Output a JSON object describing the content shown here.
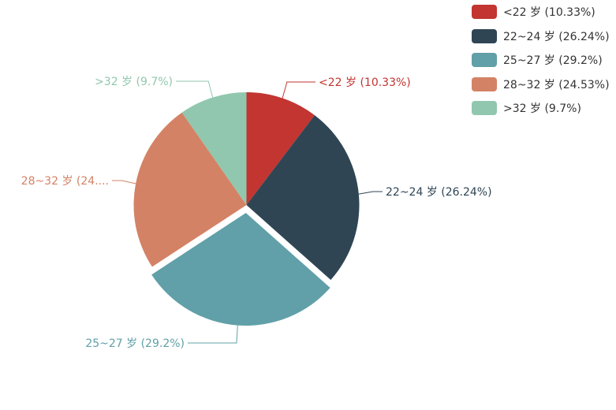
{
  "chart_data": {
    "type": "pie",
    "title": "",
    "series": [
      {
        "name": "<22 岁",
        "value": 10.33,
        "label": "<22 岁 (10.33%)",
        "short_label": "<22 岁 (10.33%)",
        "color": "#c23531"
      },
      {
        "name": "22~24 岁",
        "value": 26.24,
        "label": "22~24 岁 (26.24%)",
        "short_label": "22~24 岁 (26.24%)",
        "color": "#2f4554"
      },
      {
        "name": "25~27 岁",
        "value": 29.2,
        "label": "25~27 岁 (29.2%)",
        "short_label": "25~27 岁 (29.2%)",
        "color": "#61a0a8",
        "exploded": true
      },
      {
        "name": "28~32 岁",
        "value": 24.53,
        "label": "28~32 岁 (24.53%)",
        "short_label": "28~32 岁 (24....",
        "color": "#d48265"
      },
      {
        "name": ">32 岁",
        "value": 9.7,
        "label": ">32 岁 (9.7%)",
        "short_label": ">32 岁 (9.7%)",
        "color": "#91c7ae"
      }
    ],
    "legend_position": "top-right"
  }
}
